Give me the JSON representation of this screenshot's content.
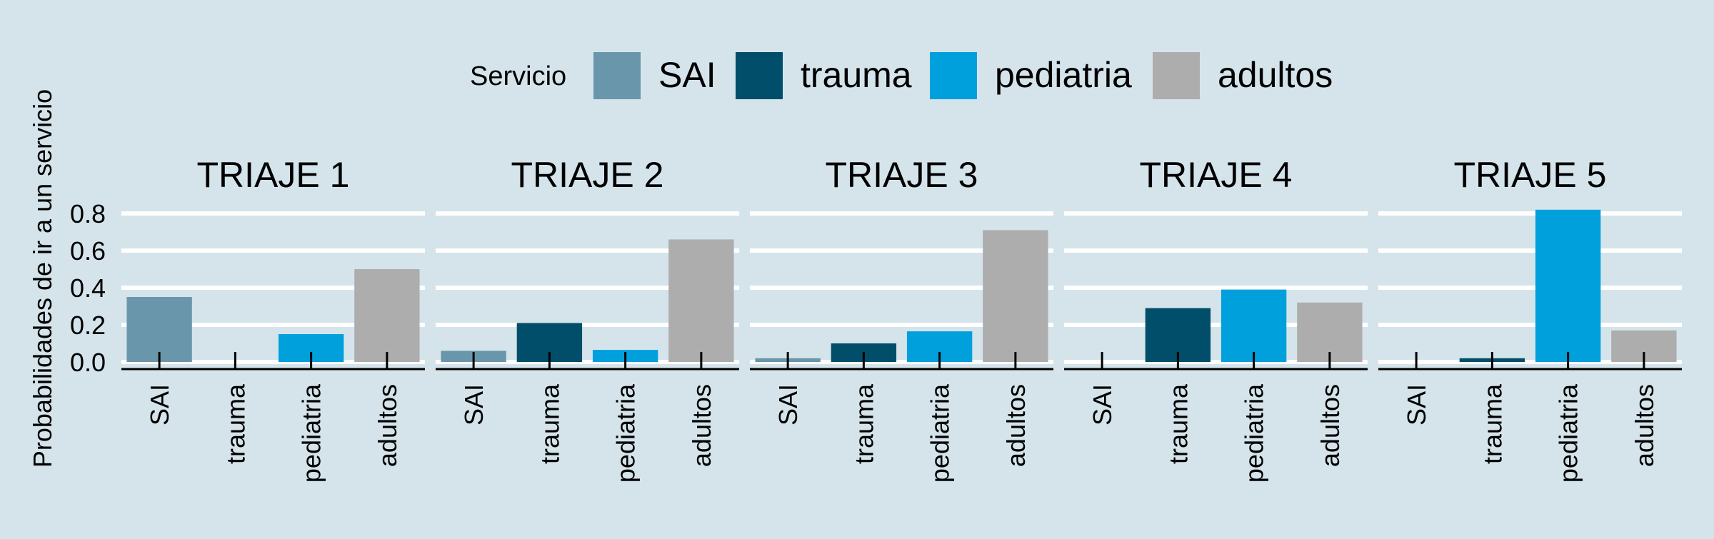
{
  "chart_data": {
    "type": "bar",
    "layout": "facets",
    "legend": {
      "title": "Servicio",
      "position": "top",
      "items": [
        {
          "name": "SAI",
          "color": "#6a96ab"
        },
        {
          "name": "trauma",
          "color": "#004e69"
        },
        {
          "name": "pediatria",
          "color": "#00a0dc"
        },
        {
          "name": "adultos",
          "color": "#adadad"
        }
      ]
    },
    "ylabel": "Probabilidades de ir a un servicio",
    "ylim": [
      0,
      0.82
    ],
    "yticks": [
      "0.0",
      "0.2",
      "0.4",
      "0.6",
      "0.8"
    ],
    "grid": true,
    "categories": [
      "SAI",
      "trauma",
      "pediatria",
      "adultos"
    ],
    "facets": [
      {
        "title": "TRIAJE 1",
        "values": [
          0.35,
          0.0,
          0.15,
          0.5
        ]
      },
      {
        "title": "TRIAJE 2",
        "values": [
          0.06,
          0.21,
          0.065,
          0.66
        ]
      },
      {
        "title": "TRIAJE 3",
        "values": [
          0.02,
          0.1,
          0.165,
          0.71
        ]
      },
      {
        "title": "TRIAJE 4",
        "values": [
          0.0,
          0.29,
          0.39,
          0.32
        ]
      },
      {
        "title": "TRIAJE 5",
        "values": [
          0.0,
          0.02,
          0.82,
          0.17
        ]
      }
    ]
  }
}
